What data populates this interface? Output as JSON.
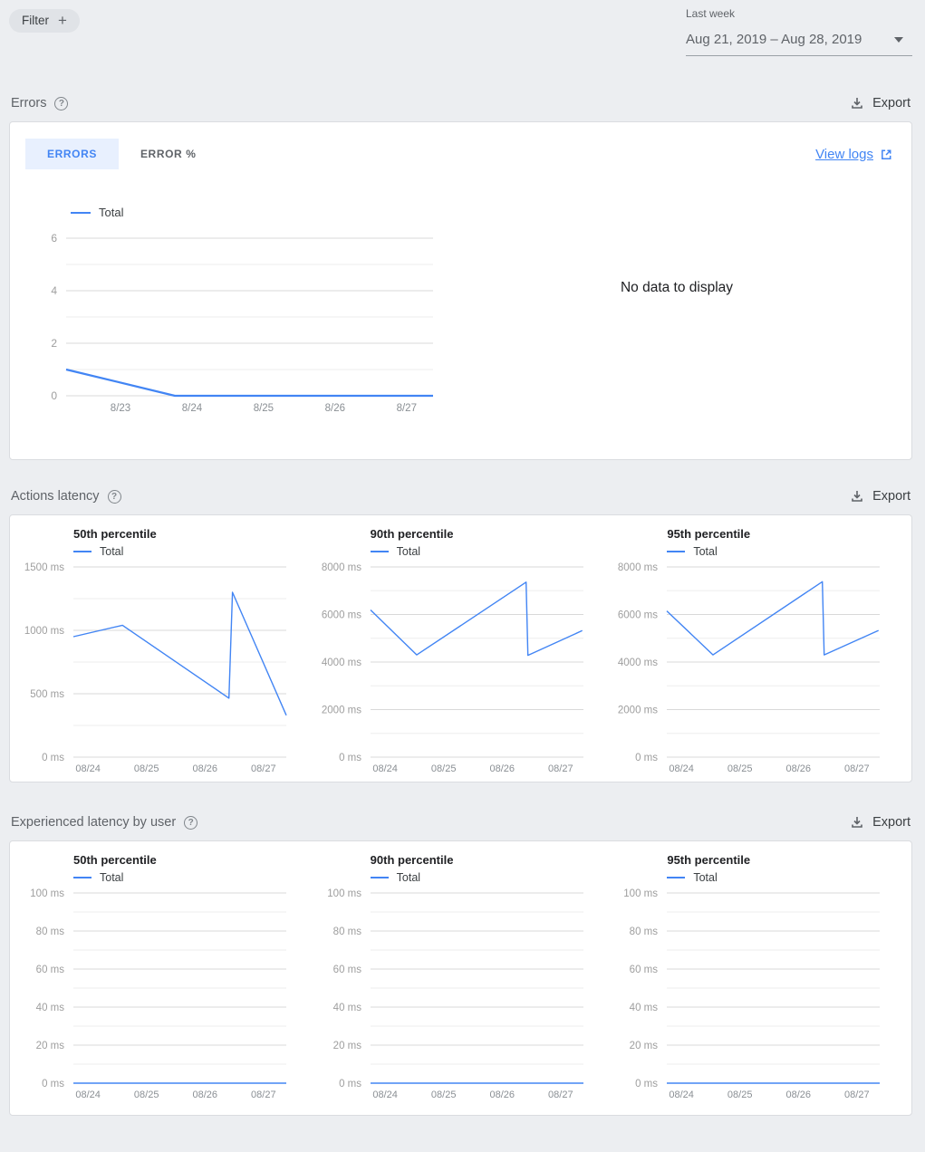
{
  "topbar": {
    "filter_label": "Filter",
    "filter_plus": "+",
    "range_label": "Last week",
    "range_value": "Aug 21, 2019 – Aug 28, 2019"
  },
  "sections": {
    "errors": {
      "title": "Errors",
      "export_label": "Export",
      "tabs": [
        {
          "label": "ERRORS",
          "active": true
        },
        {
          "label": "ERROR %",
          "active": false
        }
      ],
      "view_logs_label": "View logs",
      "no_data_text": "No data to display"
    },
    "actions_latency": {
      "title": "Actions latency",
      "export_label": "Export"
    },
    "experienced_latency": {
      "title": "Experienced latency by user",
      "export_label": "Export"
    }
  },
  "colors": {
    "accent_blue": "#4285f4",
    "tab_active_bg": "#e8f0fe",
    "page_bg": "#eceef1",
    "card_border": "#dadce0",
    "grid_major": "#d9d9d9",
    "grid_minor": "#eeeeee",
    "axis_label": "#9e9e9e"
  },
  "chart_data": [
    {
      "id": "errors",
      "type": "line",
      "title": null,
      "legend": "Total",
      "series_name": "Total",
      "y_max": 6,
      "y_ticks": [
        {
          "v": 0,
          "label": "0"
        },
        {
          "v": 2,
          "label": "2"
        },
        {
          "v": 4,
          "label": "4"
        },
        {
          "v": 6,
          "label": "6"
        }
      ],
      "x_tick_labels": [
        "8/23",
        "8/24",
        "8/25",
        "8/26",
        "8/27"
      ],
      "x_range": [
        -0.76,
        4.37
      ],
      "points": [
        [
          -0.76,
          1
        ],
        [
          0.76,
          0
        ],
        [
          4.37,
          0
        ]
      ],
      "line_color": "#4285f4",
      "line_width": 2.2
    },
    {
      "id": "al50",
      "type": "line",
      "title": "50th percentile",
      "legend": "Total",
      "series_name": "Total",
      "y_max": 1500,
      "y_ticks": [
        {
          "v": 0,
          "label": "0 ms"
        },
        {
          "v": 500,
          "label": "500 ms"
        },
        {
          "v": 1000,
          "label": "1000 ms"
        },
        {
          "v": 1500,
          "label": "1500 ms"
        }
      ],
      "x_tick_labels": [
        "08/24",
        "08/25",
        "08/26",
        "08/27"
      ],
      "x_range": [
        -0.25,
        3.39
      ],
      "points": [
        [
          -0.25,
          950
        ],
        [
          0.59,
          1040
        ],
        [
          2.41,
          465
        ],
        [
          2.47,
          1300
        ],
        [
          3.39,
          330
        ]
      ],
      "line_color": "#4285f4",
      "line_width": 1.4
    },
    {
      "id": "al90",
      "type": "line",
      "title": "90th percentile",
      "legend": "Total",
      "series_name": "Total",
      "y_max": 8000,
      "y_ticks": [
        {
          "v": 0,
          "label": "0 ms"
        },
        {
          "v": 2000,
          "label": "2000 ms"
        },
        {
          "v": 4000,
          "label": "4000 ms"
        },
        {
          "v": 6000,
          "label": "6000 ms"
        },
        {
          "v": 8000,
          "label": "8000 ms"
        }
      ],
      "x_tick_labels": [
        "08/24",
        "08/25",
        "08/26",
        "08/27"
      ],
      "x_range": [
        -0.25,
        3.39
      ],
      "points": [
        [
          -0.25,
          6190
        ],
        [
          0.54,
          4300
        ],
        [
          2.41,
          7360
        ],
        [
          2.44,
          4280
        ],
        [
          3.37,
          5320
        ]
      ],
      "line_color": "#4285f4",
      "line_width": 1.4
    },
    {
      "id": "al95",
      "type": "line",
      "title": "95th percentile",
      "legend": "Total",
      "series_name": "Total",
      "y_max": 8000,
      "y_ticks": [
        {
          "v": 0,
          "label": "0 ms"
        },
        {
          "v": 2000,
          "label": "2000 ms"
        },
        {
          "v": 4000,
          "label": "4000 ms"
        },
        {
          "v": 6000,
          "label": "6000 ms"
        },
        {
          "v": 8000,
          "label": "8000 ms"
        }
      ],
      "x_tick_labels": [
        "08/24",
        "08/25",
        "08/26",
        "08/27"
      ],
      "x_range": [
        -0.25,
        3.39
      ],
      "points": [
        [
          -0.25,
          6150
        ],
        [
          0.54,
          4300
        ],
        [
          2.41,
          7380
        ],
        [
          2.44,
          4300
        ],
        [
          3.37,
          5330
        ]
      ],
      "line_color": "#4285f4",
      "line_width": 1.4
    },
    {
      "id": "el50",
      "type": "line",
      "title": "50th percentile",
      "legend": "Total",
      "series_name": "Total",
      "y_max": 100,
      "y_ticks": [
        {
          "v": 0,
          "label": "0 ms"
        },
        {
          "v": 20,
          "label": "20 ms"
        },
        {
          "v": 40,
          "label": "40 ms"
        },
        {
          "v": 60,
          "label": "60 ms"
        },
        {
          "v": 80,
          "label": "80 ms"
        },
        {
          "v": 100,
          "label": "100 ms"
        }
      ],
      "x_tick_labels": [
        "08/24",
        "08/25",
        "08/26",
        "08/27"
      ],
      "x_range": [
        -0.25,
        3.39
      ],
      "points": [
        [
          -0.25,
          0
        ],
        [
          3.39,
          0
        ]
      ],
      "line_color": "#4285f4",
      "line_width": 1.6
    },
    {
      "id": "el90",
      "type": "line",
      "title": "90th percentile",
      "legend": "Total",
      "series_name": "Total",
      "y_max": 100,
      "y_ticks": [
        {
          "v": 0,
          "label": "0 ms"
        },
        {
          "v": 20,
          "label": "20 ms"
        },
        {
          "v": 40,
          "label": "40 ms"
        },
        {
          "v": 60,
          "label": "60 ms"
        },
        {
          "v": 80,
          "label": "80 ms"
        },
        {
          "v": 100,
          "label": "100 ms"
        }
      ],
      "x_tick_labels": [
        "08/24",
        "08/25",
        "08/26",
        "08/27"
      ],
      "x_range": [
        -0.25,
        3.39
      ],
      "points": [
        [
          -0.25,
          0
        ],
        [
          3.39,
          0
        ]
      ],
      "line_color": "#4285f4",
      "line_width": 1.6
    },
    {
      "id": "el95",
      "type": "line",
      "title": "95th percentile",
      "legend": "Total",
      "series_name": "Total",
      "y_max": 100,
      "y_ticks": [
        {
          "v": 0,
          "label": "0 ms"
        },
        {
          "v": 20,
          "label": "20 ms"
        },
        {
          "v": 40,
          "label": "40 ms"
        },
        {
          "v": 60,
          "label": "60 ms"
        },
        {
          "v": 80,
          "label": "80 ms"
        },
        {
          "v": 100,
          "label": "100 ms"
        }
      ],
      "x_tick_labels": [
        "08/24",
        "08/25",
        "08/26",
        "08/27"
      ],
      "x_range": [
        -0.25,
        3.39
      ],
      "points": [
        [
          -0.25,
          0
        ],
        [
          3.39,
          0
        ]
      ],
      "line_color": "#4285f4",
      "line_width": 1.6
    }
  ]
}
